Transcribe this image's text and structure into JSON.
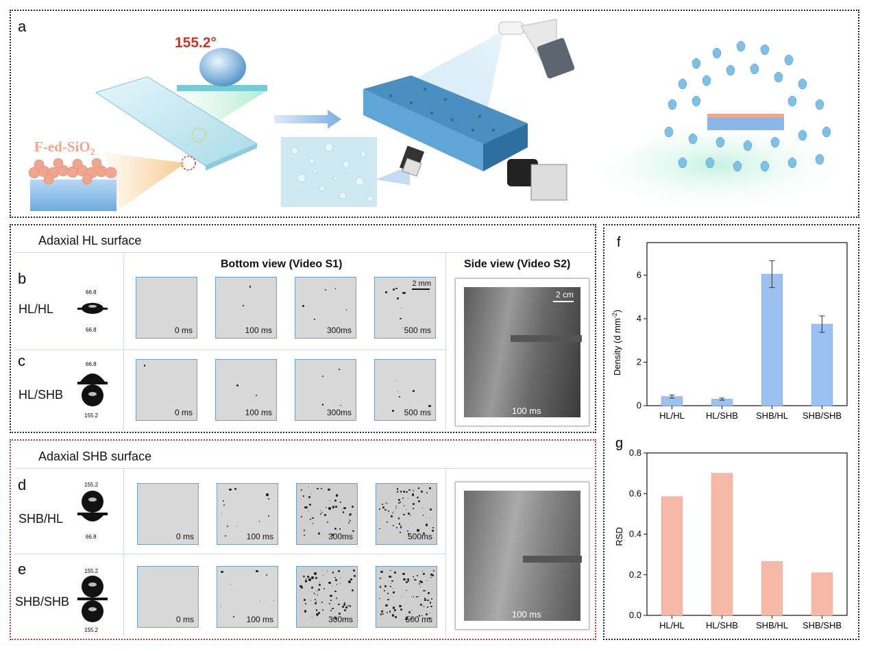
{
  "panel_a": {
    "letter": "a",
    "angle_label": "155.2°",
    "coating_label": "F-ed-SiO",
    "coating_sub": "2"
  },
  "panel_bc": {
    "section_title": "Adaxial HL surface",
    "bottom_view_title": "Bottom view (Video S1)",
    "side_view_title": "Side view (Video S2)",
    "scale_bottom": "2 mm",
    "scale_side": "2 cm",
    "side_time": "100 ms",
    "rows": [
      {
        "letter": "b",
        "label": "HL/HL",
        "angle_top": "66.8°",
        "angle_bottom": "66.8°",
        "times": [
          "0 ms",
          "100 ms",
          "300ms",
          "500 ms"
        ]
      },
      {
        "letter": "c",
        "label": "HL/SHB",
        "angle_top": "66.8°",
        "angle_bottom": "155.2°",
        "times": [
          "0 ms",
          "100 ms",
          "300ms",
          "500 ms"
        ]
      }
    ]
  },
  "panel_de": {
    "section_title": "Adaxial SHB surface",
    "side_time": "100 ms",
    "rows": [
      {
        "letter": "d",
        "label": "SHB/HL",
        "angle_top": "155.2°",
        "angle_bottom": "66.8°",
        "times": [
          "0 ms",
          "100 ms",
          "300ms",
          "500ms"
        ]
      },
      {
        "letter": "e",
        "label": "SHB/SHB",
        "angle_top": "155.2°",
        "angle_bottom": "155.2°",
        "times": [
          "0 ms",
          "100 ms",
          "300ms",
          "500 ms"
        ]
      }
    ]
  },
  "chart_data": [
    {
      "panel": "f",
      "type": "bar",
      "categories": [
        "HL/HL",
        "HL/SHB",
        "SHB/HL",
        "SHB/SHB"
      ],
      "values": [
        0.42,
        0.3,
        6.05,
        3.75
      ],
      "errors": [
        0.07,
        0.05,
        0.62,
        0.38
      ],
      "ylabel": "Density (d mm",
      "ylabel_sup": "-2",
      "ylabel_end": ")",
      "ylim": [
        0,
        7.5
      ],
      "yticks": [
        0,
        2,
        4,
        6
      ],
      "color": "#9cc0f0"
    },
    {
      "panel": "g",
      "type": "bar",
      "categories": [
        "HL/HL",
        "HL/SHB",
        "SHB/HL",
        "SHB/SHB"
      ],
      "values": [
        0.585,
        0.7,
        0.265,
        0.21
      ],
      "ylabel": "RSD",
      "ylim": [
        0,
        0.8
      ],
      "yticks": [
        0.0,
        0.2,
        0.4,
        0.6,
        0.8
      ],
      "color": "#f6b9a8"
    }
  ]
}
